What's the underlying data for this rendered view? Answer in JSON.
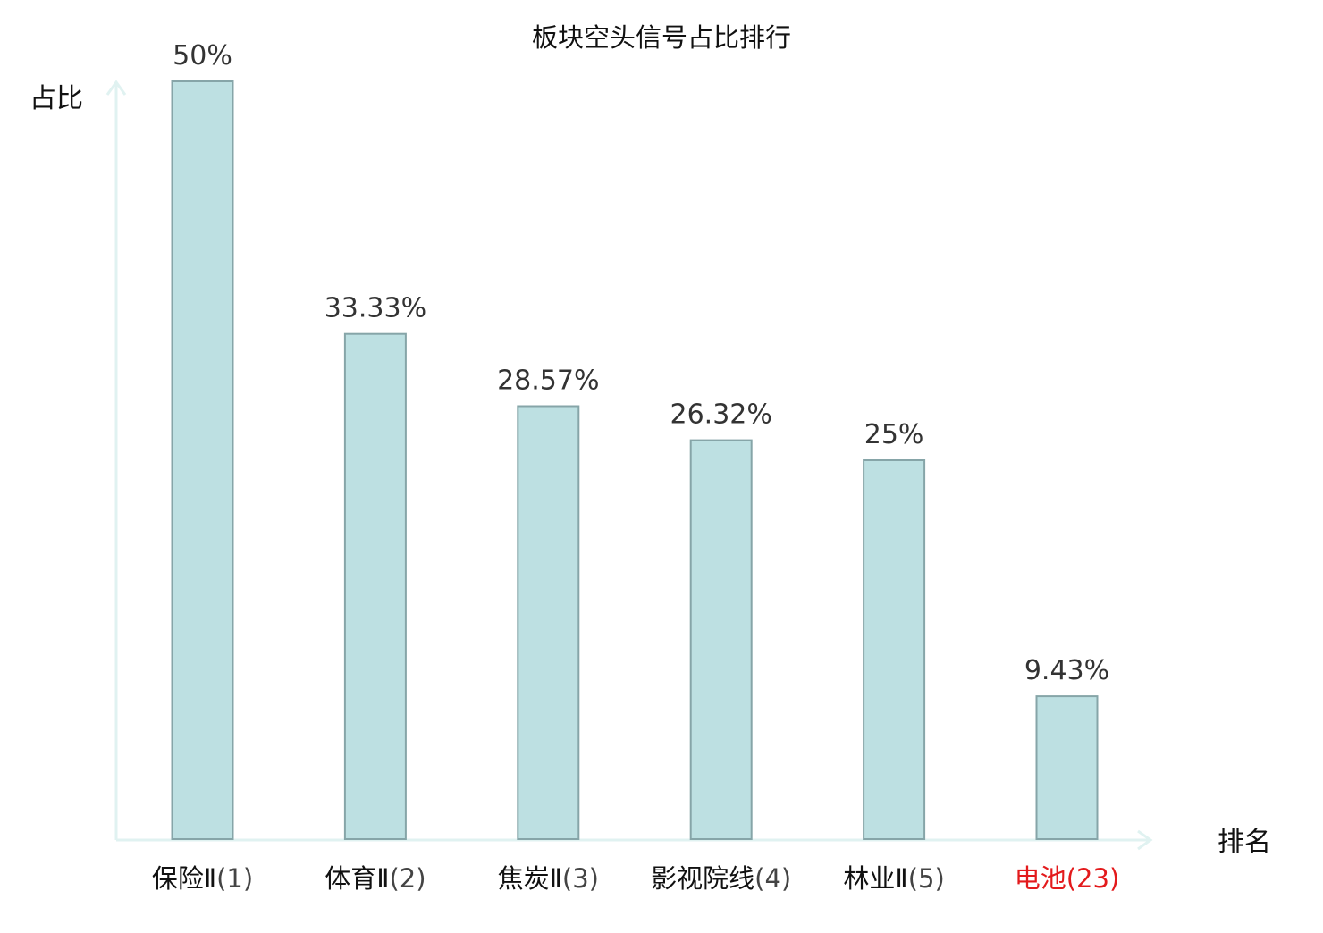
{
  "chart_data": {
    "type": "bar",
    "title": "板块空头信号占比排行",
    "ylabel": "占比",
    "xlabel": "排名",
    "categories": [
      {
        "name": "保险Ⅱ",
        "rank": "(1)",
        "highlight": false
      },
      {
        "name": "体育Ⅱ",
        "rank": "(2)",
        "highlight": false
      },
      {
        "name": "焦炭Ⅱ",
        "rank": "(3)",
        "highlight": false
      },
      {
        "name": "影视院线",
        "rank": "(4)",
        "highlight": false
      },
      {
        "name": "林业Ⅱ",
        "rank": "(5)",
        "highlight": false
      },
      {
        "name": "电池",
        "rank": "(23)",
        "highlight": true
      }
    ],
    "values": [
      50,
      33.33,
      28.57,
      26.32,
      25,
      9.43
    ],
    "value_labels": [
      "50%",
      "33.33%",
      "28.57%",
      "26.32%",
      "25%",
      "9.43%"
    ],
    "ylim": [
      0,
      50
    ],
    "grid": false,
    "colors": {
      "bar_fill": "#bde0e2",
      "bar_stroke": "#86a5a8",
      "axis": "#e0f2f1",
      "label": "#111111",
      "rank_label": "#444444",
      "value_label": "#333333",
      "highlight": "#e31a1c"
    }
  }
}
